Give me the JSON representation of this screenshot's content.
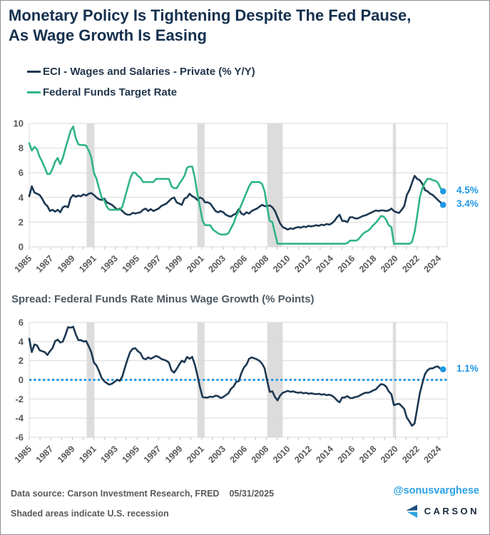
{
  "title": {
    "line1": "Monetary Policy Is Tightening Despite The Fed Pause,",
    "line2": "As Wage Growth Is Easing"
  },
  "legend": [
    {
      "label": "ECI - Wages and Salaries - Private (% Y/Y)",
      "color": "#1c3852"
    },
    {
      "label": "Federal Funds Target Rate",
      "color": "#30b585"
    }
  ],
  "colors": {
    "navy": "#1c3852",
    "green": "#30b585",
    "accent_blue": "#2098e6",
    "recession": "#dcdcdc",
    "grid": "#d9d9d9",
    "axis_text": "#595959"
  },
  "footer": {
    "source_label": "Data source: Carson Investment Research, FRED",
    "date": "05/31/2025",
    "recession_note": "Shaded areas indicate U.S. recession",
    "handle": "@sonusvarghese",
    "brand": "CARSON"
  },
  "chart_data": [
    {
      "type": "line",
      "panel": "top",
      "x_start": 1985.0,
      "x_step": 0.25,
      "x_unit": "year-quarterly",
      "ylim": [
        0,
        10
      ],
      "yticks": [
        0,
        2,
        4,
        6,
        8,
        10
      ],
      "grid": true,
      "legend_position": "above",
      "xtick_labels": [
        "1985",
        "1987",
        "1989",
        "1991",
        "1993",
        "1995",
        "1997",
        "1999",
        "2001",
        "2003",
        "2006",
        "2008",
        "2010",
        "2012",
        "2014",
        "2016",
        "2018",
        "2020",
        "2022",
        "2024"
      ],
      "recessions": [
        [
          1990.55,
          1991.3
        ],
        [
          2001.25,
          2001.95
        ],
        [
          2008.0,
          2009.5
        ],
        [
          2020.15,
          2020.45
        ]
      ],
      "series": [
        {
          "name": "ECI - Wages and Salaries - Private (% Y/Y)",
          "color": "#1c3852",
          "end_label": "3.4%",
          "values": [
            4.1,
            4.9,
            4.4,
            4.3,
            4.2,
            3.9,
            3.5,
            3.3,
            2.9,
            3.0,
            2.85,
            3.0,
            2.8,
            3.2,
            3.3,
            3.2,
            3.95,
            4.2,
            4.05,
            4.15,
            4.1,
            4.25,
            4.15,
            4.3,
            4.35,
            4.2,
            4.0,
            3.85,
            3.8,
            3.9,
            3.6,
            3.5,
            3.4,
            3.2,
            3.0,
            3.1,
            2.9,
            2.7,
            2.6,
            2.6,
            2.75,
            2.7,
            2.75,
            2.8,
            3.0,
            3.1,
            2.9,
            3.05,
            2.9,
            3.0,
            3.1,
            3.3,
            3.4,
            3.5,
            3.7,
            3.9,
            4.0,
            3.6,
            3.5,
            3.4,
            3.9,
            4.0,
            4.3,
            4.1,
            4.0,
            3.8,
            4.0,
            3.9,
            3.6,
            3.6,
            3.5,
            3.2,
            2.9,
            2.8,
            2.9,
            2.8,
            2.6,
            2.5,
            2.45,
            2.6,
            2.7,
            3.05,
            2.7,
            2.6,
            2.8,
            2.7,
            2.9,
            3.0,
            3.1,
            3.25,
            3.4,
            3.3,
            3.3,
            3.35,
            3.2,
            2.9,
            2.4,
            1.9,
            1.6,
            1.5,
            1.4,
            1.5,
            1.45,
            1.55,
            1.6,
            1.55,
            1.65,
            1.6,
            1.7,
            1.65,
            1.7,
            1.75,
            1.7,
            1.8,
            1.75,
            1.85,
            1.8,
            1.9,
            2.1,
            2.4,
            2.6,
            2.1,
            2.1,
            2.0,
            2.4,
            2.4,
            2.3,
            2.3,
            2.4,
            2.5,
            2.55,
            2.65,
            2.75,
            2.85,
            2.95,
            2.9,
            2.95,
            2.95,
            2.9,
            2.95,
            3.1,
            2.9,
            2.8,
            2.75,
            3.0,
            3.3,
            4.2,
            4.6,
            5.2,
            5.75,
            5.5,
            5.4,
            5.1,
            4.6,
            4.5,
            4.3,
            4.2,
            4.0,
            3.8,
            3.6,
            3.4
          ]
        },
        {
          "name": "Federal Funds Target Rate",
          "color": "#30b585",
          "end_label": "4.5%",
          "values": [
            8.4,
            7.8,
            8.1,
            7.9,
            7.3,
            6.9,
            6.4,
            5.9,
            5.9,
            6.3,
            6.9,
            7.2,
            6.7,
            7.2,
            8.0,
            8.7,
            9.4,
            9.75,
            8.8,
            8.3,
            8.25,
            8.25,
            8.2,
            7.8,
            7.25,
            6.0,
            5.5,
            4.75,
            4.0,
            3.75,
            3.25,
            3.0,
            3.0,
            3.0,
            3.0,
            3.0,
            3.25,
            4.0,
            4.75,
            5.5,
            6.0,
            6.0,
            5.75,
            5.6,
            5.25,
            5.25,
            5.25,
            5.25,
            5.25,
            5.5,
            5.5,
            5.5,
            5.5,
            5.5,
            5.5,
            4.9,
            4.75,
            4.75,
            5.1,
            5.4,
            5.75,
            6.4,
            6.5,
            6.5,
            5.6,
            4.3,
            3.25,
            2.1,
            1.75,
            1.75,
            1.75,
            1.4,
            1.25,
            1.1,
            1.0,
            1.0,
            1.0,
            1.1,
            1.5,
            1.9,
            2.5,
            2.9,
            3.4,
            3.9,
            4.4,
            4.9,
            5.25,
            5.25,
            5.25,
            5.25,
            5.1,
            4.5,
            3.2,
            2.1,
            2.0,
            1.1,
            0.25,
            0.25,
            0.25,
            0.25,
            0.25,
            0.25,
            0.25,
            0.25,
            0.25,
            0.25,
            0.25,
            0.25,
            0.25,
            0.25,
            0.25,
            0.25,
            0.25,
            0.25,
            0.25,
            0.25,
            0.25,
            0.25,
            0.25,
            0.25,
            0.25,
            0.25,
            0.25,
            0.3,
            0.5,
            0.5,
            0.5,
            0.55,
            0.8,
            1.05,
            1.2,
            1.3,
            1.5,
            1.75,
            1.95,
            2.2,
            2.5,
            2.45,
            2.2,
            1.75,
            1.6,
            0.25,
            0.25,
            0.25,
            0.25,
            0.25,
            0.25,
            0.25,
            0.4,
            1.2,
            2.5,
            4.0,
            4.75,
            5.2,
            5.5,
            5.5,
            5.4,
            5.35,
            5.2,
            4.75,
            4.5
          ]
        }
      ]
    },
    {
      "type": "line",
      "panel": "bottom",
      "title": "Spread: Federal Funds Rate Minus Wage Growth (% Points)",
      "x_start": 1985.0,
      "x_step": 0.25,
      "x_unit": "year-quarterly",
      "ylim": [
        -6,
        6
      ],
      "yticks": [
        6,
        4,
        2,
        0,
        -2,
        -4,
        -6
      ],
      "grid": true,
      "xtick_labels": [
        "1985",
        "1987",
        "1989",
        "1991",
        "1993",
        "1995",
        "1997",
        "1999",
        "2001",
        "2003",
        "2006",
        "2008",
        "2010",
        "2012",
        "2014",
        "2016",
        "2018",
        "2020",
        "2022",
        "2024"
      ],
      "recessions": [
        [
          1990.55,
          1991.3
        ],
        [
          2001.25,
          2001.95
        ],
        [
          2008.0,
          2009.5
        ],
        [
          2020.15,
          2020.45
        ]
      ],
      "zero_line": {
        "value": 0,
        "style": "dotted",
        "color": "#2098e6"
      },
      "series": [
        {
          "name": "Spread: Federal Funds Rate Minus Wage Growth (% Points)",
          "color": "#1c3852",
          "end_label": "1.1%",
          "derived_from": "federal_funds_target_rate minus eci_wage_growth",
          "values": [
            4.3,
            2.9,
            3.7,
            3.6,
            3.1,
            3.0,
            2.9,
            2.6,
            3.0,
            3.3,
            4.05,
            4.2,
            3.9,
            4.0,
            4.7,
            5.5,
            5.45,
            5.55,
            4.75,
            4.15,
            4.15,
            4.0,
            4.05,
            3.5,
            2.9,
            1.8,
            1.5,
            0.9,
            0.2,
            -0.15,
            -0.35,
            -0.5,
            -0.4,
            -0.2,
            0.0,
            -0.1,
            0.35,
            1.3,
            2.15,
            2.9,
            3.25,
            3.3,
            3.0,
            2.8,
            2.25,
            2.15,
            2.35,
            2.2,
            2.35,
            2.5,
            2.4,
            2.2,
            2.1,
            2.0,
            1.8,
            1.0,
            0.75,
            1.15,
            1.6,
            2.0,
            1.85,
            2.4,
            2.2,
            2.4,
            1.6,
            0.5,
            -0.75,
            -1.8,
            -1.85,
            -1.85,
            -1.75,
            -1.8,
            -1.65,
            -1.7,
            -1.9,
            -1.8,
            -1.6,
            -1.4,
            -0.95,
            -0.7,
            -0.2,
            -0.15,
            0.7,
            1.3,
            1.6,
            2.2,
            2.35,
            2.25,
            2.15,
            2.0,
            1.7,
            1.2,
            -0.1,
            -1.25,
            -1.2,
            -1.8,
            -2.15,
            -1.65,
            -1.35,
            -1.25,
            -1.15,
            -1.25,
            -1.2,
            -1.3,
            -1.35,
            -1.3,
            -1.4,
            -1.35,
            -1.45,
            -1.4,
            -1.45,
            -1.5,
            -1.45,
            -1.55,
            -1.5,
            -1.6,
            -1.55,
            -1.65,
            -1.85,
            -2.15,
            -2.35,
            -1.85,
            -1.85,
            -1.7,
            -1.9,
            -1.9,
            -1.8,
            -1.75,
            -1.6,
            -1.45,
            -1.35,
            -1.35,
            -1.25,
            -1.1,
            -1.0,
            -0.7,
            -0.45,
            -0.5,
            -0.7,
            -1.2,
            -1.5,
            -2.65,
            -2.55,
            -2.5,
            -2.75,
            -3.05,
            -3.95,
            -4.35,
            -4.8,
            -4.55,
            -3.0,
            -1.4,
            -0.35,
            0.6,
            1.0,
            1.2,
            1.2,
            1.35,
            1.4,
            1.15,
            1.1
          ]
        }
      ]
    }
  ]
}
